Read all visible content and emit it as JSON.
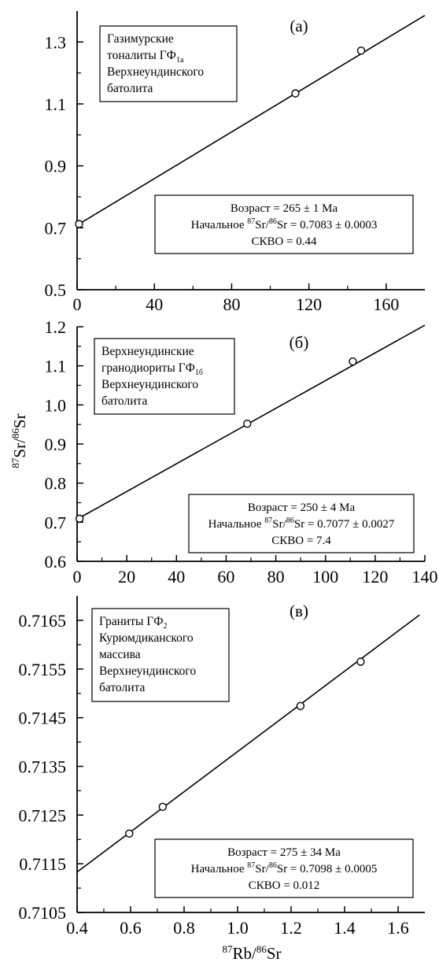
{
  "y_axis_title": {
    "iso": "Sr",
    "iso_sup": "87",
    "sep": "/",
    "ref": "Sr",
    "ref_sup": "86"
  },
  "x_axis_title": {
    "iso": "Rb",
    "iso_sup": "87",
    "sep": "/",
    "ref": "Sr",
    "ref_sup": "86"
  },
  "chart_data": [
    {
      "type": "scatter",
      "panel_label": "(а)",
      "xlim": [
        0,
        180
      ],
      "ylim": [
        0.5,
        1.4
      ],
      "x_ticks": [
        "0",
        "40",
        "80",
        "120",
        "160"
      ],
      "y_ticks": [
        "0.5",
        "0.7",
        "0.9",
        "1.1",
        "1.3"
      ],
      "x_tick_values": [
        0,
        40,
        80,
        120,
        160
      ],
      "y_tick_values": [
        0.5,
        0.7,
        0.9,
        1.1,
        1.3
      ],
      "points": [
        {
          "x": 1,
          "y": 0.712
        },
        {
          "x": 113,
          "y": 1.134
        },
        {
          "x": 147,
          "y": 1.272
        }
      ],
      "line": [
        {
          "x": 0,
          "y": 0.7083
        },
        {
          "x": 180,
          "y": 1.386
        }
      ],
      "label_lines": [
        {
          "text": "Газимурские",
          "sub": ""
        },
        {
          "text": "тоналиты ГФ",
          "sub": "1а"
        },
        {
          "text": "Верхнеундинского",
          "sub": ""
        },
        {
          "text": "батолита",
          "sub": ""
        }
      ],
      "result": {
        "age_text": "Возраст = 265 ±  1 Ма",
        "initial_prefix": "Начальное ",
        "ratio_iso": "87",
        "ratio_iso_el": "Sr/",
        "ratio_ref": "86",
        "ratio_ref_el": "Sr",
        "initial_value": " = 0.7083 ±  0.0003",
        "mswd_text": "СКВО = 0.44"
      }
    },
    {
      "type": "scatter",
      "panel_label": "(б)",
      "xlim": [
        0,
        140
      ],
      "ylim": [
        0.6,
        1.2
      ],
      "x_ticks": [
        "0",
        "20",
        "40",
        "60",
        "80",
        "100",
        "120",
        "140"
      ],
      "y_ticks": [
        "0.6",
        "0.7",
        "0.8",
        "0.9",
        "1.0",
        "1.1",
        "1.2"
      ],
      "x_tick_values": [
        0,
        20,
        40,
        60,
        80,
        100,
        120,
        140
      ],
      "y_tick_values": [
        0.6,
        0.7,
        0.8,
        0.9,
        1.0,
        1.1,
        1.2
      ],
      "points": [
        {
          "x": 1,
          "y": 0.709
        },
        {
          "x": 68.5,
          "y": 0.952
        },
        {
          "x": 111,
          "y": 1.111
        }
      ],
      "line": [
        {
          "x": 0,
          "y": 0.7077
        },
        {
          "x": 140,
          "y": 1.204
        }
      ],
      "label_lines": [
        {
          "text": "Верхнеундинские",
          "sub": ""
        },
        {
          "text": "гранодиориты ГФ",
          "sub": "1б"
        },
        {
          "text": "Верхнеундинского",
          "sub": ""
        },
        {
          "text": "батолита",
          "sub": ""
        }
      ],
      "result": {
        "age_text": "Возраст = 250 ±  4 Ма",
        "initial_prefix": "Начальное ",
        "ratio_iso": "87",
        "ratio_iso_el": "Sr/",
        "ratio_ref": "86",
        "ratio_ref_el": "Sr",
        "initial_value": " = 0.7077 ±  0.0027",
        "mswd_text": "СКВО = 7.4"
      }
    },
    {
      "type": "scatter",
      "panel_label": "(в)",
      "xlim": [
        0.4,
        1.7
      ],
      "ylim": [
        0.7105,
        0.717
      ],
      "x_ticks": [
        "0.4",
        "0.6",
        "0.8",
        "1.0",
        "1.2",
        "1.4",
        "1.6"
      ],
      "y_ticks": [
        "0.7105",
        "0.7115",
        "0.7125",
        "0.7135",
        "0.7145",
        "0.7155",
        "0.7165"
      ],
      "x_tick_values": [
        0.4,
        0.6,
        0.8,
        1.0,
        1.2,
        1.4,
        1.6
      ],
      "y_tick_values": [
        0.7105,
        0.7115,
        0.7125,
        0.7135,
        0.7145,
        0.7155,
        0.7165
      ],
      "points": [
        {
          "x": 0.595,
          "y": 0.71212
        },
        {
          "x": 0.72,
          "y": 0.71267
        },
        {
          "x": 1.235,
          "y": 0.71474
        },
        {
          "x": 1.46,
          "y": 0.71565
        }
      ],
      "line": [
        {
          "x": 0.4,
          "y": 0.71133
        },
        {
          "x": 1.68,
          "y": 0.71661
        }
      ],
      "label_lines": [
        {
          "text": "Граниты ГФ",
          "sub": "2"
        },
        {
          "text": "Курюмдиканского",
          "sub": ""
        },
        {
          "text": "массива",
          "sub": ""
        },
        {
          "text": "Верхнеундинского",
          "sub": ""
        },
        {
          "text": "батолита",
          "sub": ""
        }
      ],
      "result": {
        "age_text": "Возраст = 275 ±  34 Ма",
        "initial_prefix": "Начальное ",
        "ratio_iso": "87",
        "ratio_iso_el": "Sr/",
        "ratio_ref": "86",
        "ratio_ref_el": "Sr",
        "initial_value": " = 0.7098 ±  0.0005",
        "mswd_text": "СКВО = 0.012"
      }
    }
  ]
}
